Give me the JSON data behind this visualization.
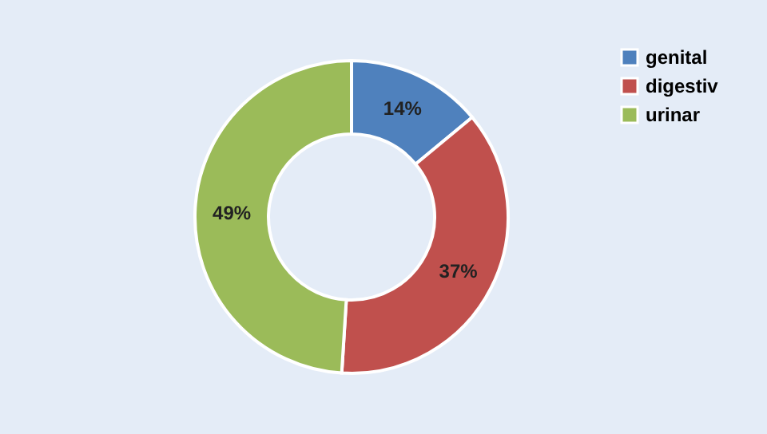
{
  "chart_data": {
    "type": "donut",
    "categories": [
      "genital",
      "digestiv",
      "urinar"
    ],
    "values": [
      14,
      37,
      49
    ],
    "colors": [
      "#4f81bd",
      "#c0504d",
      "#9bbb59"
    ],
    "value_labels": [
      "14%",
      "37%",
      "49%"
    ],
    "legend": "right"
  }
}
